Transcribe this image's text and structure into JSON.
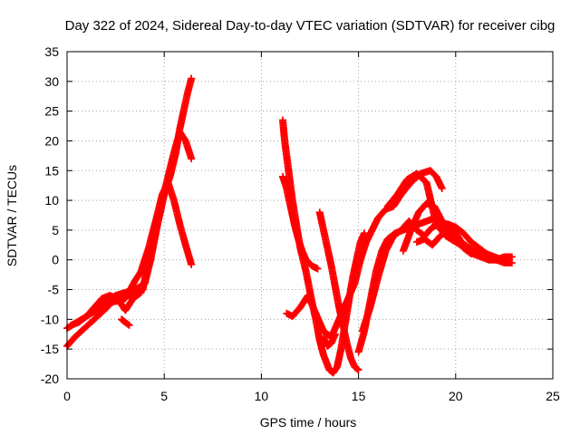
{
  "chart_data": {
    "type": "scatter",
    "title": "Day 322 of 2024, Sidereal Day-to-day VTEC variation (SDTVAR) for receiver cibg",
    "xlabel": "GPS time / hours",
    "ylabel": "SDTVAR / TECUs",
    "xlim": [
      0,
      25
    ],
    "ylim": [
      -20,
      35
    ],
    "xticks": [
      "0",
      "5",
      "10",
      "15",
      "20",
      "25"
    ],
    "yticks": [
      "-20",
      "-15",
      "-10",
      "-5",
      "0",
      "5",
      "10",
      "15",
      "20",
      "25",
      "30",
      "35"
    ],
    "grid": true,
    "marker": "plus",
    "color": "#ff0000",
    "series": [
      {
        "name": "trace-a",
        "x": [
          0.0,
          0.4,
          0.9,
          1.4,
          1.9,
          2.3,
          2.7,
          3.1,
          3.5,
          3.9,
          4.2,
          4.5,
          4.8,
          5.0,
          5.3,
          5.6,
          5.8,
          6.0,
          6.2,
          6.4
        ],
        "y": [
          -14.5,
          -13.0,
          -11.5,
          -10.0,
          -8.5,
          -7.2,
          -6.5,
          -6.0,
          -6.0,
          -5.0,
          0.0,
          4.0,
          8.0,
          11.0,
          14.0,
          18.0,
          22.0,
          25.0,
          28.0,
          30.5
        ]
      },
      {
        "name": "trace-b",
        "x": [
          0.0,
          0.5,
          1.0,
          1.5,
          2.0,
          2.5,
          3.0,
          3.5,
          4.0,
          4.3,
          4.6,
          4.9,
          5.2,
          5.5,
          5.8,
          6.1,
          6.4
        ],
        "y": [
          -11.5,
          -10.5,
          -9.5,
          -8.5,
          -7.0,
          -6.0,
          -5.5,
          -5.0,
          -4.0,
          0.0,
          5.0,
          10.0,
          14.0,
          18.0,
          21.5,
          20.0,
          17.0
        ]
      },
      {
        "name": "trace-c",
        "x": [
          2.5,
          3.0,
          3.5,
          3.8,
          4.2,
          4.6,
          4.9,
          5.2,
          5.5,
          5.8,
          6.1,
          6.4
        ],
        "y": [
          -7.0,
          -6.5,
          -3.5,
          -2.0,
          2.0,
          7.0,
          11.0,
          13.0,
          10.0,
          6.0,
          2.5,
          -0.8
        ]
      },
      {
        "name": "trace-d",
        "x": [
          11.1,
          11.2,
          11.4,
          11.6,
          11.8,
          12.0,
          12.3,
          12.6,
          12.8,
          13.0,
          13.2,
          13.5,
          13.7,
          13.9,
          14.1,
          14.3,
          14.5,
          14.7,
          14.9,
          15.1,
          15.3
        ],
        "y": [
          23.5,
          20.0,
          15.0,
          10.0,
          6.0,
          2.0,
          -2.0,
          -7.0,
          -10.0,
          -13.5,
          -16.0,
          -18.5,
          -19.0,
          -18.0,
          -15.0,
          -11.0,
          -7.0,
          -3.0,
          0.0,
          3.0,
          4.5
        ]
      },
      {
        "name": "trace-e",
        "x": [
          11.1,
          11.3,
          11.5,
          11.7,
          11.9,
          12.1,
          12.3,
          12.6,
          12.9
        ],
        "y": [
          14.0,
          12.0,
          9.0,
          6.0,
          3.5,
          1.5,
          0.0,
          -1.0,
          -1.5
        ]
      },
      {
        "name": "trace-f",
        "x": [
          11.3,
          11.6,
          12.0,
          12.4,
          12.8,
          13.2,
          13.6,
          14.0,
          14.4,
          14.8,
          15.1,
          15.4,
          15.7,
          16.0,
          16.4,
          16.8,
          17.2,
          17.7,
          18.2,
          18.7,
          19.0,
          19.3
        ],
        "y": [
          -9.0,
          -9.5,
          -8.0,
          -6.0,
          -9.0,
          -12.0,
          -13.0,
          -10.0,
          -7.0,
          -4.0,
          0.0,
          3.0,
          5.0,
          7.0,
          8.5,
          9.0,
          11.0,
          13.0,
          14.5,
          15.0,
          14.0,
          12.0
        ]
      },
      {
        "name": "trace-g",
        "x": [
          13.0,
          13.2,
          13.4,
          13.6,
          13.8,
          14.0,
          14.2,
          14.4,
          14.6,
          14.8,
          15.0
        ],
        "y": [
          8.0,
          5.0,
          2.0,
          -1.0,
          -4.5,
          -8.0,
          -11.0,
          -14.0,
          -16.5,
          -18.0,
          -18.5
        ]
      },
      {
        "name": "trace-h",
        "x": [
          15.0,
          15.3,
          15.6,
          15.9,
          16.2,
          16.5,
          16.9,
          17.3,
          17.7,
          18.1,
          18.5,
          18.9,
          19.3,
          19.7,
          20.1,
          20.5,
          20.9,
          21.3,
          21.7,
          22.1,
          22.5,
          22.9
        ],
        "y": [
          -15.5,
          -12.0,
          -7.0,
          -2.0,
          1.5,
          3.5,
          4.5,
          5.0,
          5.5,
          6.0,
          6.5,
          7.0,
          6.5,
          5.5,
          4.0,
          2.0,
          1.0,
          0.5,
          0.0,
          0.0,
          0.5,
          0.5
        ]
      },
      {
        "name": "trace-i",
        "x": [
          15.2,
          15.6,
          16.0,
          16.4,
          16.8,
          17.2,
          17.6,
          18.0,
          18.4,
          18.8,
          19.2,
          19.6,
          20.0,
          20.4,
          20.8,
          21.2,
          21.6,
          22.0,
          22.4,
          22.8
        ],
        "y": [
          -12.0,
          -8.0,
          -3.0,
          1.5,
          4.0,
          5.0,
          6.5,
          5.0,
          4.0,
          5.5,
          6.0,
          6.0,
          5.5,
          4.5,
          3.0,
          2.0,
          1.0,
          0.5,
          0.0,
          -0.5
        ]
      },
      {
        "name": "trace-j",
        "x": [
          17.3,
          17.7,
          18.1,
          18.5,
          18.9,
          19.3,
          19.7,
          20.1,
          20.5,
          20.9,
          21.3,
          21.7,
          22.1,
          22.5,
          22.9
        ],
        "y": [
          1.5,
          5.0,
          8.0,
          9.5,
          9.0,
          6.5,
          4.5,
          3.0,
          2.5,
          1.5,
          1.0,
          0.5,
          0.0,
          -0.5,
          -0.5
        ]
      },
      {
        "name": "trace-k",
        "x": [
          16.5,
          17.0,
          17.5,
          18.0,
          18.5,
          19.0,
          19.5,
          20.0,
          20.5,
          21.0
        ],
        "y": [
          9.0,
          11.0,
          13.5,
          14.5,
          13.0,
          6.0,
          4.0,
          3.0,
          2.0,
          1.0
        ]
      },
      {
        "name": "trace-l",
        "x": [
          18.0,
          18.4,
          18.8,
          19.2,
          19.6,
          20.0,
          20.4,
          20.8
        ],
        "y": [
          3.0,
          3.5,
          2.5,
          4.0,
          5.0,
          3.5,
          2.0,
          1.0
        ]
      },
      {
        "name": "trace-m",
        "x": [
          0.2,
          0.6,
          1.0,
          1.4,
          1.8,
          2.2,
          2.6,
          3.0,
          3.4,
          3.8,
          4.0
        ],
        "y": [
          -11.0,
          -10.5,
          -9.5,
          -8.0,
          -6.5,
          -6.0,
          -6.5,
          -8.5,
          -6.5,
          -5.5,
          -3.5
        ]
      },
      {
        "name": "trace-n",
        "x": [
          2.8,
          3.0,
          3.2
        ],
        "y": [
          -10.0,
          -10.5,
          -11.0
        ]
      },
      {
        "name": "trace-o",
        "x": [
          13.2,
          13.4,
          13.6,
          13.8
        ],
        "y": [
          -13.0,
          -14.5,
          -14.0,
          -12.5
        ]
      }
    ]
  }
}
